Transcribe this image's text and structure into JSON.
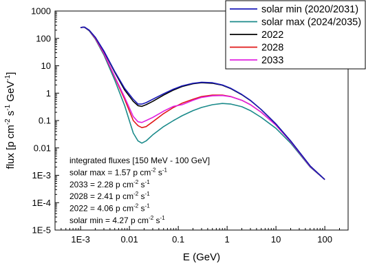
{
  "chart_data": {
    "type": "line",
    "title": "",
    "xlabel": "E (GeV)",
    "ylabel": "flux  [p cm⁻² s⁻¹ GeV⁻¹]",
    "xscale": "log",
    "yscale": "log",
    "xlim": [
      0.0003,
      300
    ],
    "ylim": [
      1e-05,
      1000
    ],
    "xticks": [
      {
        "v": 0.001,
        "label": "1E-3"
      },
      {
        "v": 0.01,
        "label": "0.01"
      },
      {
        "v": 0.1,
        "label": "0.1"
      },
      {
        "v": 1,
        "label": "1"
      },
      {
        "v": 10,
        "label": "10"
      },
      {
        "v": 100,
        "label": "100"
      }
    ],
    "yticks": [
      {
        "v": 1000,
        "label": "1000"
      },
      {
        "v": 100,
        "label": "100"
      },
      {
        "v": 10,
        "label": "10"
      },
      {
        "v": 1,
        "label": "1"
      },
      {
        "v": 0.1,
        "label": "0.1"
      },
      {
        "v": 0.01,
        "label": "0.01"
      },
      {
        "v": 0.001,
        "label": "1E-3"
      },
      {
        "v": 0.0001,
        "label": "1E-4"
      },
      {
        "v": 1e-05,
        "label": "1E-5"
      }
    ],
    "legend_position": "top-right",
    "series": [
      {
        "name": "solar min (2020/2031)",
        "color": "#1a1ab8",
        "x": [
          0.001,
          0.0012,
          0.0015,
          0.002,
          0.003,
          0.005,
          0.008,
          0.012,
          0.015,
          0.018,
          0.022,
          0.03,
          0.05,
          0.08,
          0.12,
          0.2,
          0.3,
          0.5,
          0.8,
          1.2,
          2,
          3,
          5,
          10,
          20,
          50,
          100
        ],
        "y": [
          250,
          260,
          200,
          110,
          35,
          6.2,
          1.5,
          0.6,
          0.4,
          0.4,
          0.45,
          0.6,
          0.95,
          1.4,
          1.85,
          2.3,
          2.5,
          2.4,
          2.0,
          1.5,
          0.9,
          0.55,
          0.25,
          0.075,
          0.018,
          0.0022,
          0.0007
        ]
      },
      {
        "name": "solar max (2024/2035)",
        "color": "#1a8a8a",
        "x": [
          0.001,
          0.0012,
          0.0015,
          0.002,
          0.003,
          0.005,
          0.008,
          0.012,
          0.015,
          0.018,
          0.022,
          0.03,
          0.05,
          0.08,
          0.12,
          0.2,
          0.3,
          0.5,
          0.8,
          1.2,
          2,
          3,
          5,
          10,
          20,
          50,
          100
        ],
        "y": [
          250,
          255,
          190,
          95,
          25,
          3.0,
          0.35,
          0.035,
          0.018,
          0.015,
          0.018,
          0.03,
          0.06,
          0.1,
          0.15,
          0.23,
          0.3,
          0.38,
          0.42,
          0.4,
          0.32,
          0.23,
          0.13,
          0.052,
          0.015,
          0.002,
          0.0007
        ]
      },
      {
        "name": "2022",
        "color": "#000000",
        "x": [
          0.001,
          0.0012,
          0.0015,
          0.002,
          0.003,
          0.005,
          0.008,
          0.012,
          0.015,
          0.018,
          0.022,
          0.03,
          0.05,
          0.08,
          0.12,
          0.2,
          0.3,
          0.5,
          0.8,
          1.2,
          2,
          3,
          5,
          10,
          20,
          50,
          100
        ],
        "y": [
          250,
          260,
          200,
          110,
          34,
          5.8,
          1.3,
          0.5,
          0.35,
          0.33,
          0.38,
          0.5,
          0.85,
          1.3,
          1.75,
          2.2,
          2.4,
          2.3,
          1.95,
          1.45,
          0.88,
          0.54,
          0.25,
          0.075,
          0.018,
          0.0022,
          0.0007
        ]
      },
      {
        "name": "2028",
        "color": "#e01818",
        "x": [
          0.001,
          0.0012,
          0.0015,
          0.002,
          0.003,
          0.005,
          0.008,
          0.012,
          0.015,
          0.018,
          0.022,
          0.03,
          0.05,
          0.08,
          0.12,
          0.2,
          0.3,
          0.5,
          0.8,
          1.2,
          2,
          3,
          5,
          10,
          20,
          50,
          100
        ],
        "y": [
          250,
          255,
          195,
          100,
          28,
          3.8,
          0.6,
          0.1,
          0.065,
          0.055,
          0.06,
          0.09,
          0.18,
          0.3,
          0.43,
          0.6,
          0.75,
          0.85,
          0.85,
          0.75,
          0.55,
          0.38,
          0.2,
          0.068,
          0.017,
          0.0021,
          0.0007
        ]
      },
      {
        "name": "2033",
        "color": "#e020e0",
        "x": [
          0.001,
          0.0012,
          0.0015,
          0.002,
          0.003,
          0.005,
          0.008,
          0.012,
          0.015,
          0.018,
          0.022,
          0.03,
          0.05,
          0.08,
          0.12,
          0.2,
          0.3,
          0.5,
          0.8,
          1.2,
          2,
          3,
          5,
          10,
          20,
          50,
          100
        ],
        "y": [
          250,
          258,
          198,
          103,
          29,
          4.0,
          0.7,
          0.14,
          0.09,
          0.085,
          0.1,
          0.13,
          0.22,
          0.33,
          0.38,
          0.55,
          0.7,
          0.8,
          0.82,
          0.74,
          0.55,
          0.38,
          0.2,
          0.068,
          0.017,
          0.0021,
          0.0007
        ]
      }
    ],
    "annotation": {
      "lines": [
        {
          "text": "integrated fluxes [150 MeV - 100 GeV]"
        },
        {
          "text": "solar max = 1.57 p cm",
          "sup1": "-2",
          "mid": " s",
          "sup2": "-1"
        },
        {
          "text": "2033 = 2.28 p cm",
          "sup1": "-2",
          "mid": " s",
          "sup2": "-1"
        },
        {
          "text": "2028 = 2.41 p cm",
          "sup1": "-2",
          "mid": " s",
          "sup2": "-1"
        },
        {
          "text": "2022 = 4.06 p cm",
          "sup1": "-2",
          "mid": " s",
          "sup2": "-1"
        },
        {
          "text": "solar min = 4.27 p cm",
          "sup1": "-2",
          "mid": " s",
          "sup2": "-1"
        }
      ]
    }
  }
}
